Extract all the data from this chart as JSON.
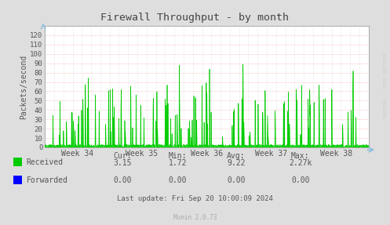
{
  "title": "Firewall Throughput - by month",
  "ylabel": "Packets/second",
  "yticks": [
    0,
    10,
    20,
    30,
    40,
    50,
    60,
    70,
    80,
    90,
    100,
    110,
    120
  ],
  "ylim": [
    0,
    130
  ],
  "xtick_labels": [
    "Week 34",
    "Week 35",
    "Week 36",
    "Week 37",
    "Week 38"
  ],
  "bg_color": "#FFFFFF",
  "plot_bg_color": "#FFFFFF",
  "received_color": "#00CC00",
  "received_fill": "#00DD00",
  "forwarded_color": "#0000FF",
  "axis_color": "#AAAAAA",
  "text_color": "#555555",
  "title_color": "#444444",
  "watermark": "RRDTOOL / TOBI OETIKER",
  "munin_version": "Munin 2.0.73",
  "last_update": "Last update: Fri Sep 20 10:00:09 2024",
  "legend_items": [
    "Received",
    "Forwarded"
  ],
  "legend_colors": [
    "#00CC00",
    "#0000FF"
  ],
  "stats_headers": [
    "Cur:",
    "Min:",
    "Avg:",
    "Max:"
  ],
  "stats_received": [
    "3.15",
    "1.72",
    "9.22",
    "2.27k"
  ],
  "stats_forwarded": [
    "0.00",
    "0.00",
    "0.00",
    "0.00"
  ],
  "outer_bg": "#DEDEDE",
  "grid_h_color": "#FFAAAA",
  "grid_v_color": "#CCCCCC",
  "num_points": 1200
}
